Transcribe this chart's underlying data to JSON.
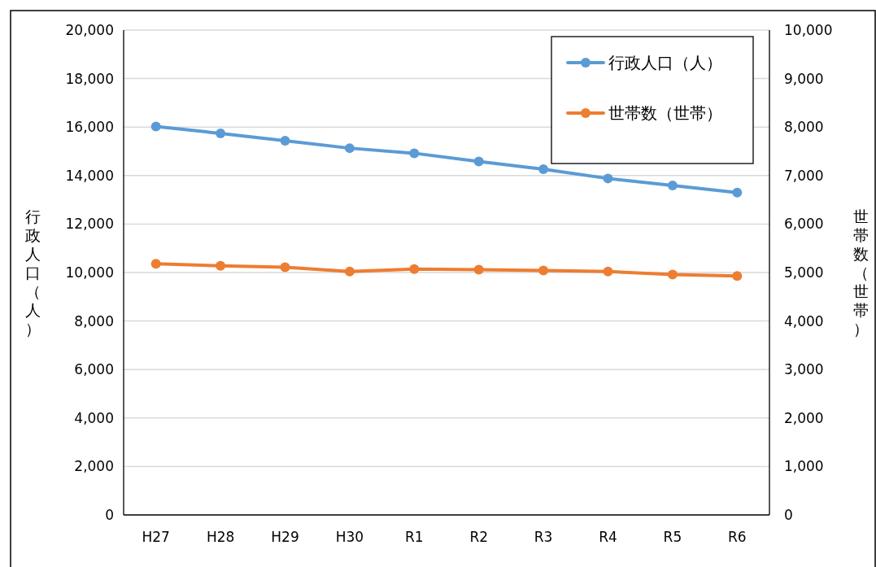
{
  "chart_data": {
    "type": "line",
    "ylabel": "行政人口（人）",
    "y2label": "世帯数（世帯）",
    "categories": [
      "H27",
      "H28",
      "H29",
      "H30",
      "R1",
      "R2",
      "R3",
      "R4",
      "R5",
      "R6"
    ],
    "series": [
      {
        "name": "行政人口（人）",
        "color": "#5b9bd5",
        "values": [
          16020,
          15740,
          15440,
          15130,
          14920,
          14580,
          14260,
          13880,
          13590,
          13300
        ]
      },
      {
        "name": "世帯数（世帯）",
        "color": "#ed7d31",
        "axis": "y2",
        "values": [
          5180,
          5140,
          5110,
          5020,
          5070,
          5060,
          5040,
          5020,
          4960,
          4930
        ]
      }
    ],
    "ylim": [
      0,
      20000
    ],
    "yticks": [
      {
        "value": 0,
        "label": "0"
      },
      {
        "value": 2000,
        "label": "2,000"
      },
      {
        "value": 4000,
        "label": "4,000"
      },
      {
        "value": 6000,
        "label": "6,000"
      },
      {
        "value": 8000,
        "label": "8,000"
      },
      {
        "value": 10000,
        "label": "10,000"
      },
      {
        "value": 12000,
        "label": "12,000"
      },
      {
        "value": 14000,
        "label": "14,000"
      },
      {
        "value": 16000,
        "label": "16,000"
      },
      {
        "value": 18000,
        "label": "18,000"
      },
      {
        "value": 20000,
        "label": "20,000"
      }
    ],
    "y2lim": [
      0,
      10000
    ],
    "y2ticks": [
      {
        "value": 0,
        "label": "0"
      },
      {
        "value": 1000,
        "label": "1,000"
      },
      {
        "value": 2000,
        "label": "2,000"
      },
      {
        "value": 3000,
        "label": "3,000"
      },
      {
        "value": 4000,
        "label": "4,000"
      },
      {
        "value": 5000,
        "label": "5,000"
      },
      {
        "value": 6000,
        "label": "6,000"
      },
      {
        "value": 7000,
        "label": "7,000"
      },
      {
        "value": 8000,
        "label": "8,000"
      },
      {
        "value": 9000,
        "label": "9,000"
      },
      {
        "value": 10000,
        "label": "10,000"
      }
    ],
    "grid": "y",
    "legend": "top right",
    "marker": "circle",
    "line_style": "solid"
  }
}
